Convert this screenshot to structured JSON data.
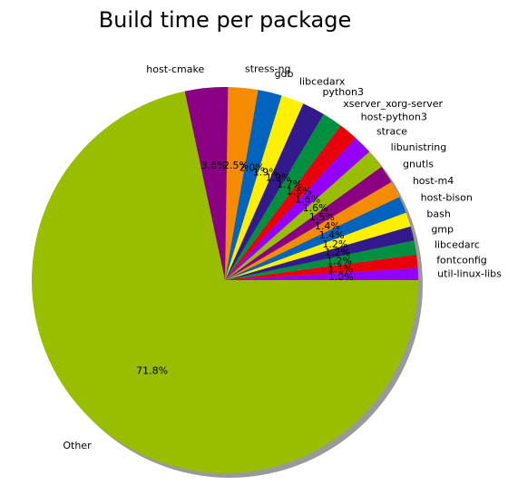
{
  "chart_data": {
    "type": "pie",
    "title": "Build time per package",
    "start_angle_deg": 0,
    "direction": "counterclockwise",
    "shadow": true,
    "slices": [
      {
        "label": "util-linux-libs",
        "value": 1.0,
        "pct_text": "1.0%",
        "color": "#9400ff"
      },
      {
        "label": "fontconfig",
        "value": 1.1,
        "pct_text": "1.1%",
        "color": "#e8000b"
      },
      {
        "label": "libcedarc",
        "value": 1.2,
        "pct_text": "1.2%",
        "color": "#009040"
      },
      {
        "label": "gmp",
        "value": 1.2,
        "pct_text": "1.2%",
        "color": "#32198c"
      },
      {
        "label": "bash",
        "value": 1.2,
        "pct_text": "1.2%",
        "color": "#fff000"
      },
      {
        "label": "host-bison",
        "value": 1.4,
        "pct_text": "1.4%",
        "color": "#0063be"
      },
      {
        "label": "host-m4",
        "value": 1.4,
        "pct_text": "1.4%",
        "color": "#f58b00"
      },
      {
        "label": "gnutls",
        "value": 1.5,
        "pct_text": "1.5%",
        "color": "#8b0082"
      },
      {
        "label": "libunistring",
        "value": 1.6,
        "pct_text": "1.6%",
        "color": "#99be00"
      },
      {
        "label": "strace",
        "value": 1.6,
        "pct_text": "1.6%",
        "color": "#9400ff"
      },
      {
        "label": "host-python3",
        "value": 1.6,
        "pct_text": "1.6%",
        "color": "#e8000b"
      },
      {
        "label": "xserver_xorg-server",
        "value": 1.7,
        "pct_text": "1.7%",
        "color": "#009040"
      },
      {
        "label": "python3",
        "value": 1.9,
        "pct_text": "1.9%",
        "color": "#32198c"
      },
      {
        "label": "libcedarx",
        "value": 1.9,
        "pct_text": "1.9%",
        "color": "#fff000"
      },
      {
        "label": "gdb",
        "value": 2.0,
        "pct_text": "2.0%",
        "color": "#0063be"
      },
      {
        "label": "stress-ng",
        "value": 2.5,
        "pct_text": "2.5%",
        "color": "#f58b00"
      },
      {
        "label": "host-cmake",
        "value": 3.6,
        "pct_text": "3.6%",
        "color": "#8b0082"
      },
      {
        "label": "Other",
        "value": 71.8,
        "pct_text": "71.8%",
        "color": "#99be00"
      }
    ]
  }
}
